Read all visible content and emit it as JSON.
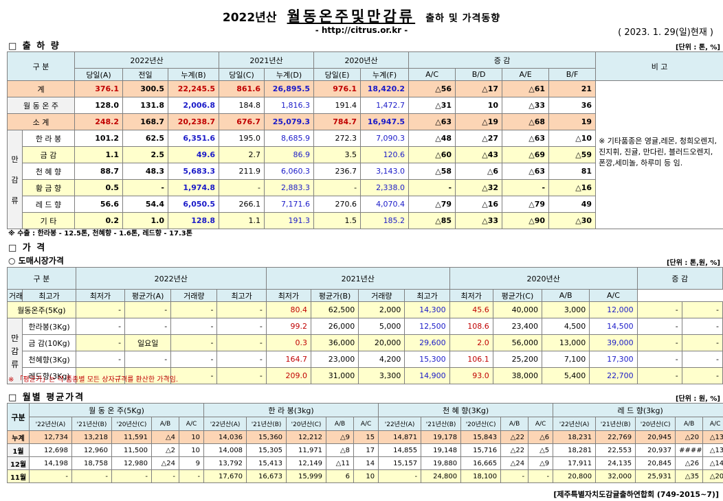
{
  "header": {
    "year": "2022년산",
    "main": "월동온주및만감류",
    "sub": "출하 및 가격동향",
    "url": "- http://citrus.or.kr -",
    "date": "( 2023. 1. 29(일)현재 )"
  },
  "s1": {
    "title": "□ 출 하 량",
    "unit": "[단위 : 톤, %]",
    "h_gubun": "구    분",
    "h_2022": "2022년산",
    "h_2021": "2021년산",
    "h_2020": "2020년산",
    "h_change": "증    감",
    "h_remark": "비 고",
    "cols": [
      "당일(A)",
      "전일",
      "누계(B)",
      "당일(C)",
      "누계(D)",
      "당일(E)",
      "누계(F)",
      "A/C",
      "B/D",
      "A/E",
      "B/F"
    ],
    "group_label": [
      "만",
      "감",
      "류"
    ],
    "rows": [
      {
        "name": "계",
        "v": [
          "376.1",
          "300.5",
          "22,245.5",
          "861.6",
          "26,895.5",
          "976.1",
          "18,420.2",
          "△56",
          "△17",
          "△61",
          "21"
        ]
      },
      {
        "name": "월 동 온 주",
        "v": [
          "128.0",
          "131.8",
          "2,006.8",
          "184.8",
          "1,816.3",
          "191.4",
          "1,472.7",
          "△31",
          "10",
          "△33",
          "36"
        ]
      },
      {
        "name": "소    계",
        "v": [
          "248.2",
          "168.7",
          "20,238.7",
          "676.7",
          "25,079.3",
          "784.7",
          "16,947.5",
          "△63",
          "△19",
          "△68",
          "19"
        ]
      },
      {
        "name": "한 라 봉",
        "v": [
          "101.2",
          "62.5",
          "6,351.6",
          "195.0",
          "8,685.9",
          "272.3",
          "7,090.3",
          "△48",
          "△27",
          "△63",
          "△10"
        ]
      },
      {
        "name": "금    감",
        "v": [
          "1.1",
          "2.5",
          "49.6",
          "2.7",
          "86.9",
          "3.5",
          "120.6",
          "△60",
          "△43",
          "△69",
          "△59"
        ]
      },
      {
        "name": "천 혜 향",
        "v": [
          "88.7",
          "48.3",
          "5,683.3",
          "211.9",
          "6,060.3",
          "236.7",
          "3,143.0",
          "△58",
          "△6",
          "△63",
          "81"
        ]
      },
      {
        "name": "황 금 향",
        "v": [
          "0.5",
          "-",
          "1,974.8",
          "-",
          "2,883.3",
          "-",
          "2,338.0",
          "-",
          "△32",
          "-",
          "△16"
        ]
      },
      {
        "name": "레 드 향",
        "v": [
          "56.6",
          "54.4",
          "6,050.5",
          "266.1",
          "7,171.6",
          "270.6",
          "4,070.4",
          "△79",
          "△16",
          "△79",
          "49"
        ]
      },
      {
        "name": "기    타",
        "v": [
          "0.2",
          "1.0",
          "128.8",
          "1.1",
          "191.3",
          "1.5",
          "185.2",
          "△85",
          "△33",
          "△90",
          "△30"
        ]
      }
    ],
    "remark": "※ 기타품종은 영귤,레몬, 청희오렌지, 진지휘, 진귤, 만다린, 블러드오렌지, 폰깡,세미놀, 하루미 등 임.",
    "note": "※ 수출 : 한라봉 - 12.5톤, 천혜향 - 1.6톤, 레드향 - 17.3톤"
  },
  "s2": {
    "title": "□ 가    격",
    "subtitle": "○ 도매시장가격",
    "unit": "[단위 : 톤,원, %]",
    "h_gubun": "구    분",
    "h_2022": "2022년산",
    "h_2021": "2021년산",
    "h_2020": "2020년산",
    "h_change": "증    감",
    "cols": [
      "거래량",
      "최고가",
      "최저가",
      "평균가(A)",
      "거래량",
      "최고가",
      "최저가",
      "평균가(B)",
      "거래량",
      "최고가",
      "최저가",
      "평균가(C)",
      "A/B",
      "A/C"
    ],
    "group_label": [
      "만",
      "감",
      "류"
    ],
    "rows": [
      {
        "name": "월동온주(5Kg)",
        "v": [
          "-",
          "-",
          "-",
          "-",
          "80.4",
          "62,500",
          "2,000",
          "14,300",
          "45.6",
          "40,000",
          "3,000",
          "12,000",
          "-",
          "-"
        ]
      },
      {
        "name": "한라봉(3Kg)",
        "v": [
          "-",
          "-",
          "-",
          "-",
          "99.2",
          "26,000",
          "5,000",
          "12,500",
          "108.6",
          "23,400",
          "4,500",
          "14,500",
          "-",
          "-"
        ]
      },
      {
        "name": "금 감(10Kg)",
        "v": [
          "-",
          "일요일",
          "-",
          "-",
          "0.3",
          "36,000",
          "20,000",
          "29,600",
          "2.0",
          "56,000",
          "13,000",
          "39,000",
          "-",
          "-"
        ]
      },
      {
        "name": "천혜향(3Kg)",
        "v": [
          "-",
          "-",
          "-",
          "-",
          "164.7",
          "23,000",
          "4,200",
          "15,300",
          "106.1",
          "25,200",
          "7,100",
          "17,300",
          "-",
          "-"
        ]
      },
      {
        "name": "레드향(3Kg)",
        "v": [
          "-",
          "-",
          "-",
          "-",
          "209.0",
          "31,000",
          "3,300",
          "14,900",
          "93.0",
          "38,000",
          "5,400",
          "22,700",
          "-",
          "-"
        ]
      }
    ],
    "note": "※ 「평균가」는 각 품종별 모든 상자규격를 환산한 가격임."
  },
  "s3": {
    "title": "□ 월별 평균가격",
    "unit": "[단위 : 원, %]",
    "h_gubun": "구분",
    "groups": [
      "월 동 온 주(5Kg)",
      "한 라 봉(3kg)",
      "천 혜 향(3Kg)",
      "레 드 향(3kg)"
    ],
    "cols": [
      "'22년산(A)",
      "'21년산(B)",
      "'20년산(C)",
      "A/B",
      "A/C"
    ],
    "rows": [
      {
        "name": "누계",
        "v": [
          "12,734",
          "13,218",
          "11,591",
          "△4",
          "10",
          "14,036",
          "15,360",
          "12,212",
          "△9",
          "15",
          "14,871",
          "19,178",
          "15,843",
          "△22",
          "△6",
          "18,231",
          "22,769",
          "20,945",
          "△20",
          "△13"
        ]
      },
      {
        "name": "1월",
        "v": [
          "12,698",
          "12,960",
          "11,500",
          "△2",
          "10",
          "14,008",
          "15,305",
          "11,971",
          "△8",
          "17",
          "14,855",
          "19,148",
          "15,716",
          "△22",
          "△5",
          "18,281",
          "22,553",
          "20,937",
          "#####",
          "△13"
        ]
      },
      {
        "name": "12월",
        "v": [
          "14,198",
          "18,758",
          "12,980",
          "△24",
          "9",
          "13,792",
          "15,413",
          "12,149",
          "△11",
          "14",
          "15,157",
          "19,880",
          "16,665",
          "△24",
          "△9",
          "17,911",
          "24,135",
          "20,845",
          "△26",
          "△14"
        ]
      },
      {
        "name": "11월",
        "v": [
          "-",
          "-",
          "-",
          "-",
          "-",
          "17,670",
          "16,673",
          "15,999",
          "6",
          "10",
          "-",
          "24,800",
          "18,100",
          "-",
          "-",
          "20,800",
          "32,000",
          "25,931",
          "△35",
          "△20"
        ]
      }
    ],
    "footer": "[제주특별자치도감귤출하연합회 (749-2015~7)]"
  }
}
